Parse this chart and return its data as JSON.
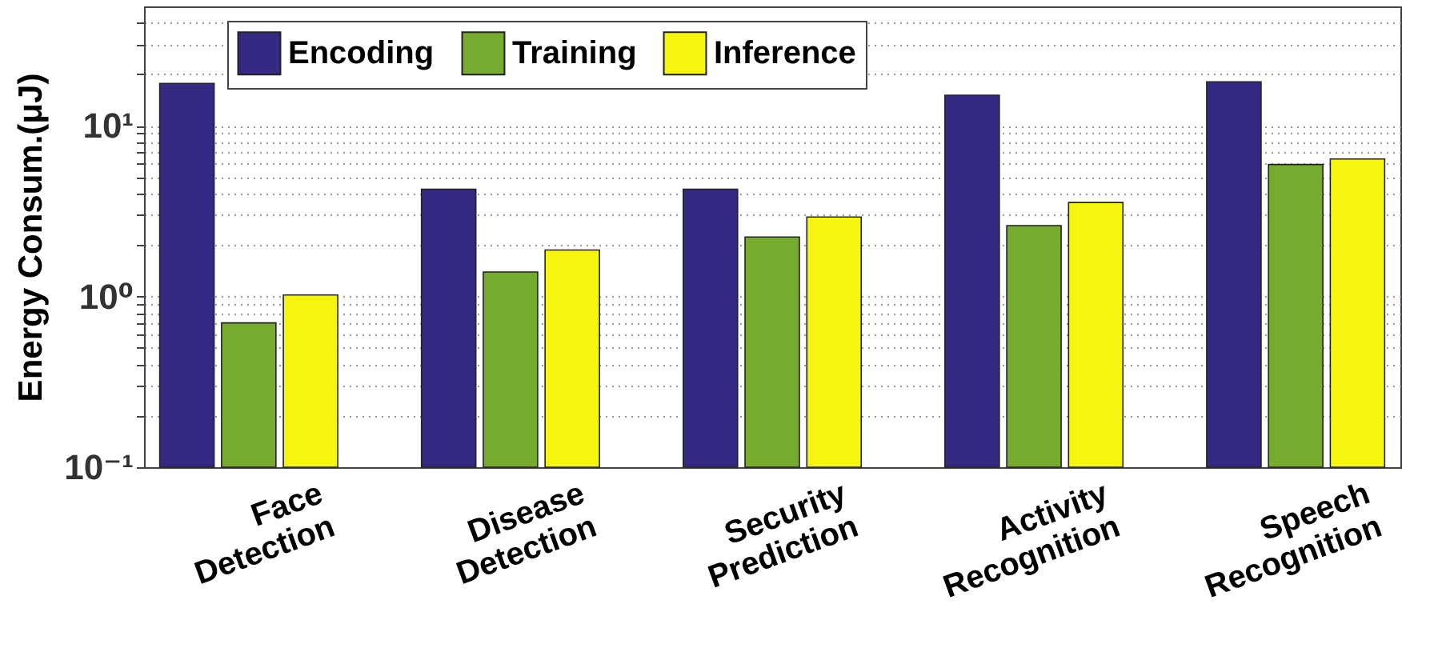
{
  "chart_data": {
    "type": "bar",
    "ylabel": "Energy Consum.(μJ)",
    "categories": [
      "Face Detection",
      "Disease Detection",
      "Security Prediction",
      "Activity Recognition",
      "Speech Recognition"
    ],
    "series": [
      {
        "name": "Encoding",
        "color": "#342a84",
        "values": [
          17.7,
          4.25,
          4.25,
          15.1,
          18.1
        ]
      },
      {
        "name": "Training",
        "color": "#77ab2f",
        "values": [
          0.7,
          1.39,
          2.23,
          2.6,
          5.93
        ]
      },
      {
        "name": "Inference",
        "color": "#f5f50f",
        "values": [
          1.02,
          1.87,
          2.92,
          3.55,
          6.38
        ]
      }
    ],
    "log": "y",
    "ylim": [
      0.1,
      50
    ],
    "yticks": [
      {
        "value": 0.1,
        "label": "10⁻¹"
      },
      {
        "value": 0.2,
        "label": null
      },
      {
        "value": 0.3,
        "label": null
      },
      {
        "value": 0.4,
        "label": null
      },
      {
        "value": 0.5,
        "label": null
      },
      {
        "value": 0.6,
        "label": null
      },
      {
        "value": 0.7,
        "label": null
      },
      {
        "value": 0.8,
        "label": null
      },
      {
        "value": 0.9,
        "label": null
      },
      {
        "value": 1,
        "label": "10⁰"
      },
      {
        "value": 2,
        "label": null
      },
      {
        "value": 3,
        "label": null
      },
      {
        "value": 4,
        "label": null
      },
      {
        "value": 5,
        "label": null
      },
      {
        "value": 6,
        "label": null
      },
      {
        "value": 7,
        "label": null
      },
      {
        "value": 8,
        "label": null
      },
      {
        "value": 9,
        "label": null
      },
      {
        "value": 10,
        "label": "10¹"
      },
      {
        "value": 20,
        "label": null
      },
      {
        "value": 30,
        "label": null
      },
      {
        "value": 40,
        "label": null
      }
    ],
    "grid": "y",
    "legend": "top left"
  }
}
